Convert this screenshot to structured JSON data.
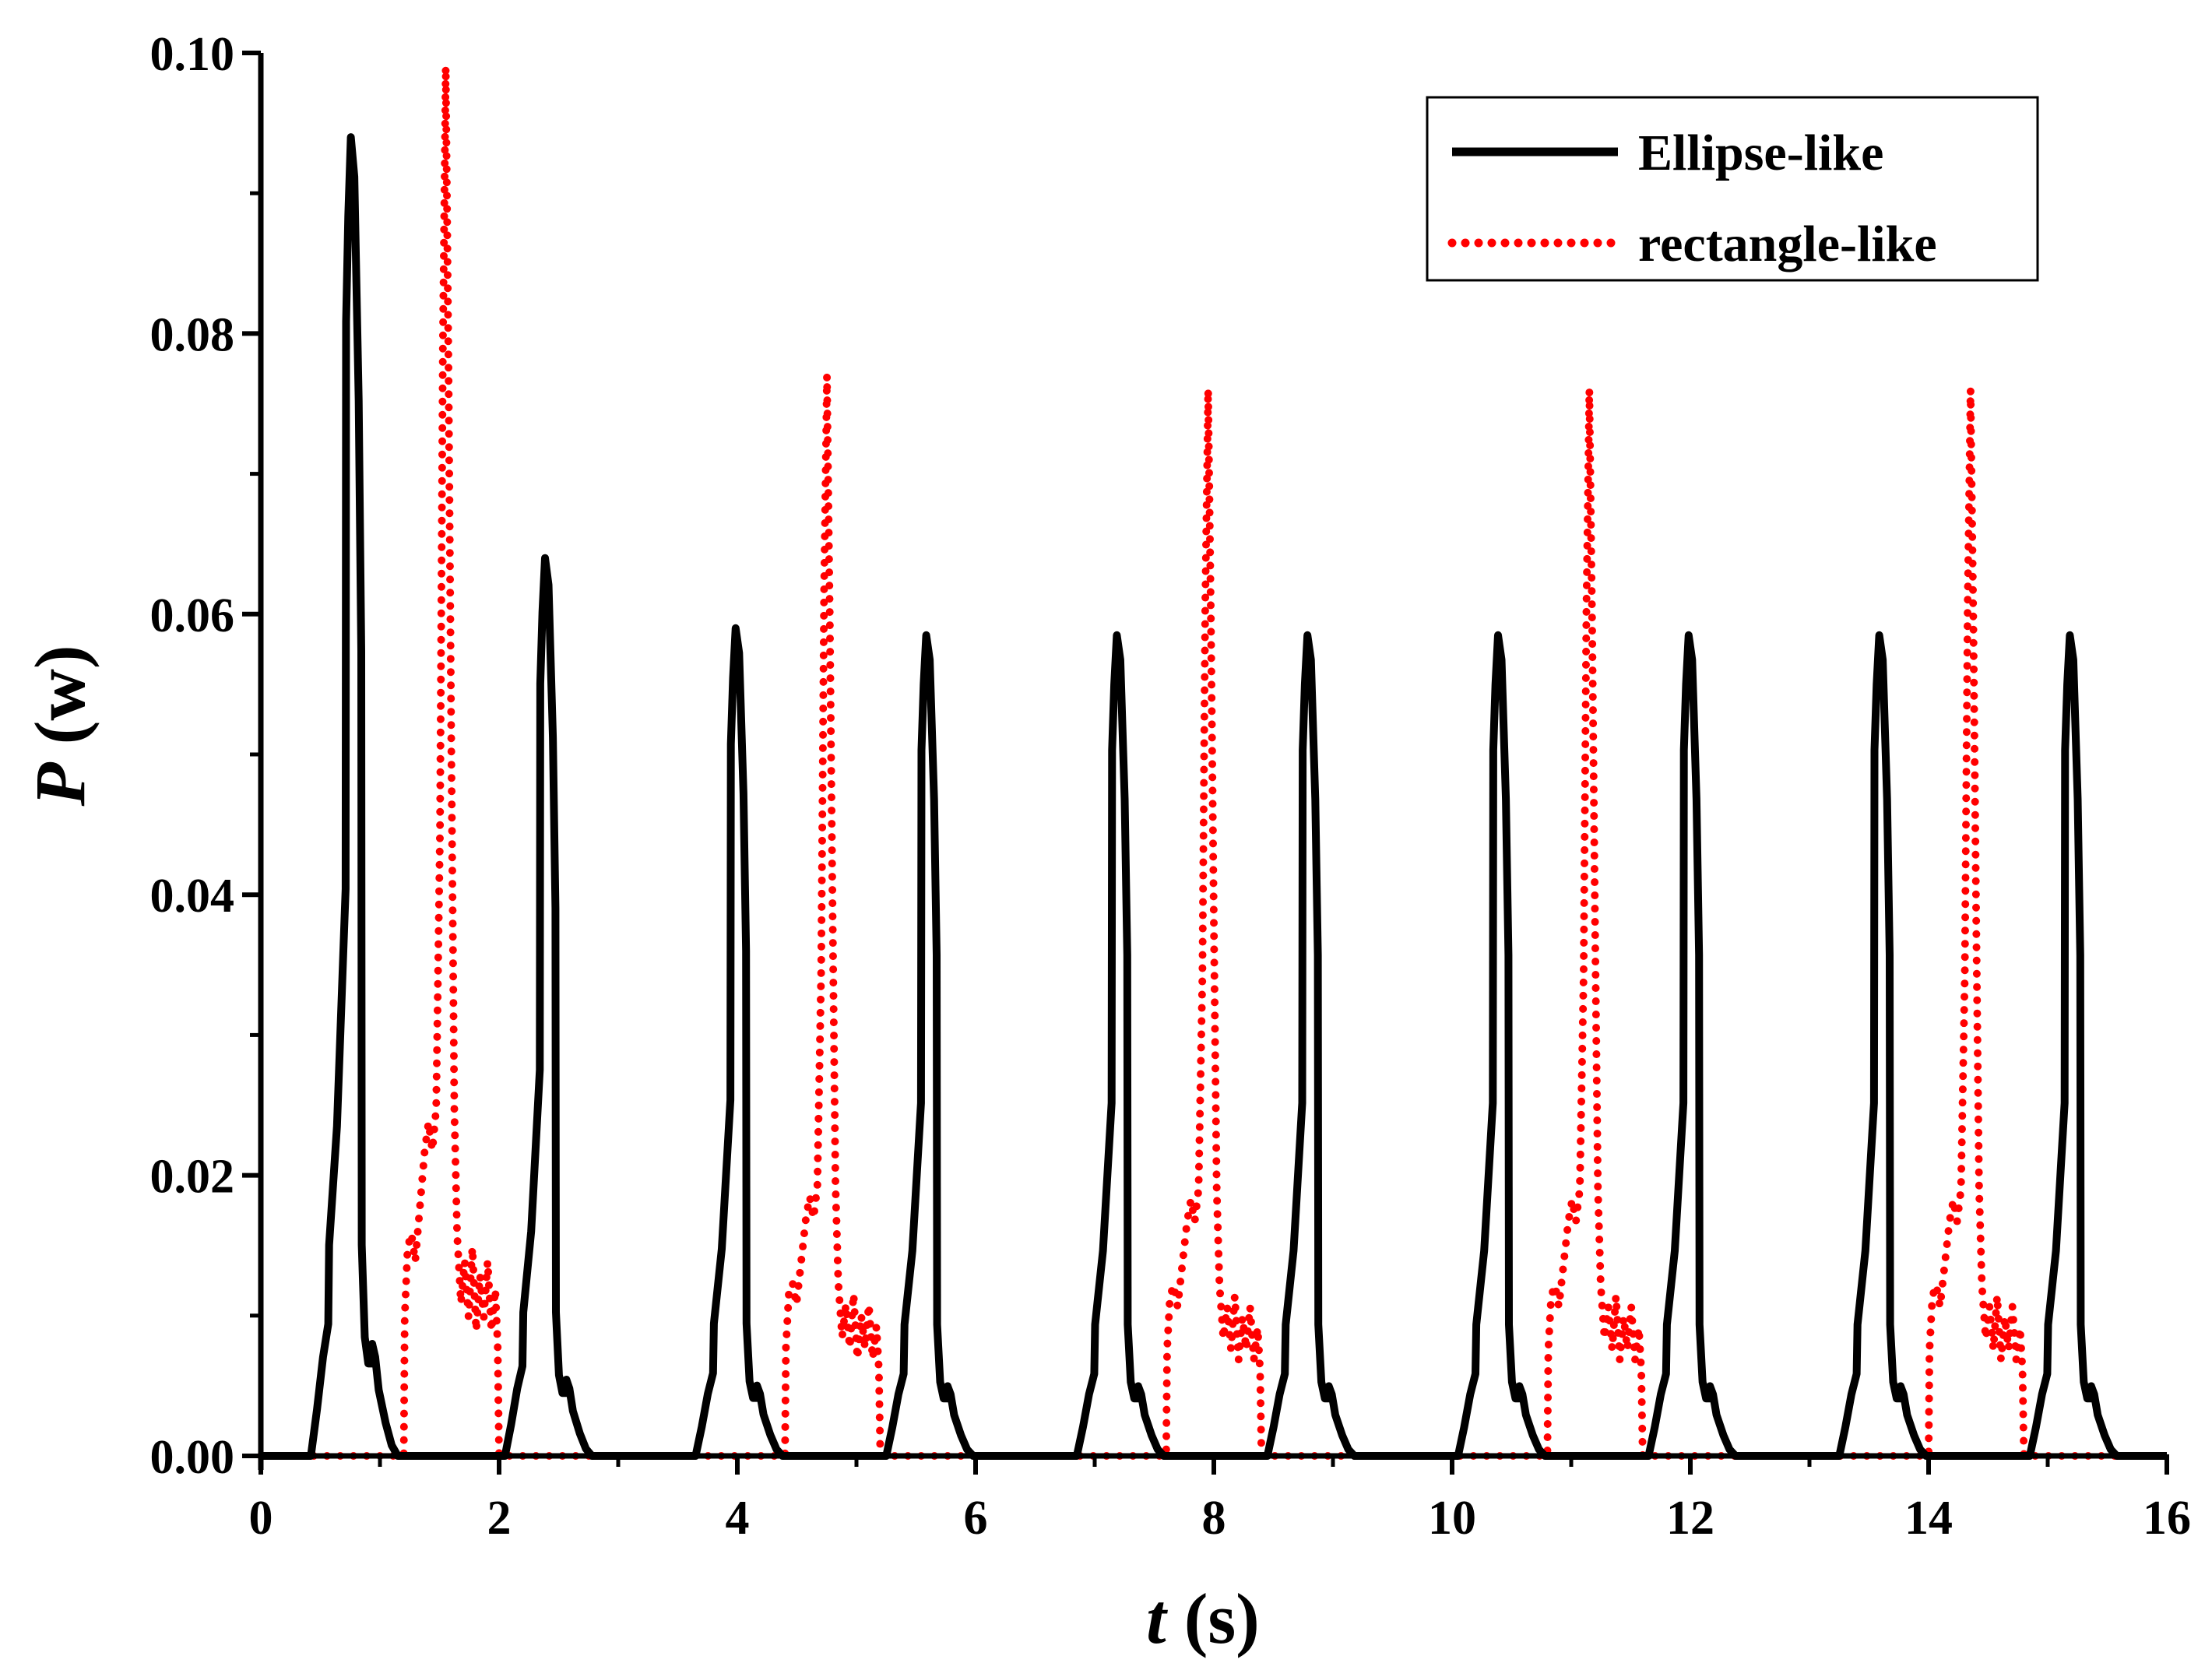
{
  "chart_data": {
    "type": "line",
    "title": "",
    "xlabel": {
      "italic": "t",
      "rest": " (s)"
    },
    "ylabel": {
      "italic": "P",
      "rest": " (w)"
    },
    "xlim": [
      0,
      16
    ],
    "ylim": [
      0,
      0.1
    ],
    "grid": false,
    "legend_position": "top-right",
    "x_ticks": [
      0,
      2,
      4,
      6,
      8,
      10,
      12,
      14,
      16
    ],
    "x_tick_labels": [
      "0",
      "2",
      "4",
      "6",
      "8",
      "10",
      "12",
      "14",
      "16"
    ],
    "y_ticks": [
      0,
      0.02,
      0.04,
      0.06,
      0.08,
      0.1
    ],
    "y_tick_labels": [
      "0.00",
      "0.02",
      "0.04",
      "0.06",
      "0.08",
      "0.10"
    ],
    "series": [
      {
        "name": "Ellipse-like",
        "color": "#000000",
        "style": "solid",
        "pulses": [
          {
            "start": 0.42,
            "peak_t": 0.78,
            "peak": 0.094,
            "end": 1.15
          },
          {
            "start": 2.05,
            "peak_t": 2.4,
            "peak": 0.064,
            "end": 2.78
          },
          {
            "start": 3.65,
            "peak_t": 3.98,
            "peak": 0.059,
            "end": 4.38
          },
          {
            "start": 5.25,
            "peak_t": 5.58,
            "peak": 0.0585,
            "end": 5.98
          },
          {
            "start": 6.85,
            "peak_t": 7.18,
            "peak": 0.0585,
            "end": 7.58
          },
          {
            "start": 8.45,
            "peak_t": 8.78,
            "peak": 0.0585,
            "end": 9.18
          },
          {
            "start": 10.05,
            "peak_t": 10.38,
            "peak": 0.0585,
            "end": 10.78
          },
          {
            "start": 11.65,
            "peak_t": 11.98,
            "peak": 0.0585,
            "end": 12.38
          },
          {
            "start": 13.25,
            "peak_t": 13.58,
            "peak": 0.0585,
            "end": 13.98
          },
          {
            "start": 14.85,
            "peak_t": 15.18,
            "peak": 0.0585,
            "end": 15.58
          }
        ]
      },
      {
        "name": "rectangle-like",
        "color": "#ff0000",
        "style": "dotted",
        "pulses": [
          {
            "start": 1.2,
            "peak_t": 1.55,
            "peak": 0.099,
            "end": 2.0
          },
          {
            "start": 4.4,
            "peak_t": 4.72,
            "peak": 0.077,
            "end": 5.2
          },
          {
            "start": 7.6,
            "peak_t": 7.95,
            "peak": 0.076,
            "end": 8.4
          },
          {
            "start": 10.8,
            "peak_t": 11.15,
            "peak": 0.076,
            "end": 11.6
          },
          {
            "start": 14.0,
            "peak_t": 14.35,
            "peak": 0.076,
            "end": 14.8
          }
        ]
      }
    ]
  }
}
